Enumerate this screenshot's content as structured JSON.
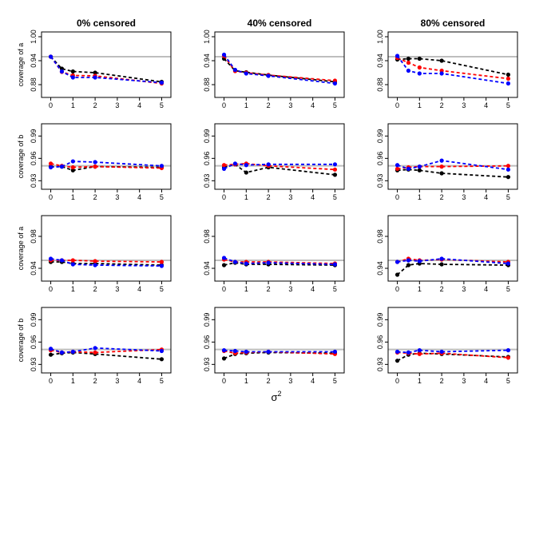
{
  "figure": {
    "column_titles": [
      "0% censored",
      "40% censored",
      "80% censored"
    ],
    "row_ylabels": [
      "coverage of a",
      "coverage of b",
      "coverage of a",
      "coverage of b"
    ],
    "xlabel": "σ",
    "xlabel_superscript": "2",
    "x_ticks": [
      0,
      1,
      2,
      3,
      4,
      5
    ],
    "reference_line_color": "#bebebe",
    "series_colors": [
      "#000000",
      "#ff0000",
      "#0000ff"
    ]
  },
  "chart_data": [
    {
      "type": "line",
      "row": 0,
      "col": 0,
      "title": "0% censored",
      "ylabel": "coverage of a",
      "x": [
        0,
        0.5,
        1,
        2,
        5
      ],
      "ylim": [
        0.86,
        1.0
      ],
      "yticks": [
        0.88,
        0.94,
        1.0
      ],
      "yticklabels": [
        "0.88",
        "0.94",
        "1.00"
      ],
      "reference": 0.95,
      "series": [
        {
          "color": "#000000",
          "values": [
            0.95,
            0.92,
            0.913,
            0.91,
            0.887
          ]
        },
        {
          "color": "#ff0000",
          "values": [
            0.95,
            0.912,
            0.903,
            0.902,
            0.883
          ]
        },
        {
          "color": "#0000ff",
          "values": [
            0.95,
            0.913,
            0.898,
            0.898,
            0.885
          ]
        }
      ]
    },
    {
      "type": "line",
      "row": 0,
      "col": 1,
      "title": "40% censored",
      "ylabel": "",
      "x": [
        0,
        0.5,
        1,
        2,
        5
      ],
      "ylim": [
        0.86,
        1.0
      ],
      "yticks": [
        0.88,
        0.94,
        1.0
      ],
      "yticklabels": [
        "0.88",
        "0.94",
        "1.00"
      ],
      "reference": 0.95,
      "series": [
        {
          "color": "#000000",
          "values": [
            0.945,
            0.915,
            0.911,
            0.904,
            0.887
          ]
        },
        {
          "color": "#ff0000",
          "values": [
            0.952,
            0.914,
            0.91,
            0.904,
            0.89
          ]
        },
        {
          "color": "#0000ff",
          "values": [
            0.955,
            0.917,
            0.908,
            0.902,
            0.883
          ]
        }
      ]
    },
    {
      "type": "line",
      "row": 0,
      "col": 2,
      "title": "80% censored",
      "ylabel": "",
      "x": [
        0,
        0.5,
        1,
        2,
        5
      ],
      "ylim": [
        0.86,
        1.0
      ],
      "yticks": [
        0.88,
        0.94,
        1.0
      ],
      "yticklabels": [
        "0.88",
        "0.94",
        "1.00"
      ],
      "reference": 0.95,
      "series": [
        {
          "color": "#000000",
          "values": [
            0.943,
            0.945,
            0.945,
            0.94,
            0.905
          ]
        },
        {
          "color": "#ff0000",
          "values": [
            0.947,
            0.935,
            0.923,
            0.915,
            0.895
          ]
        },
        {
          "color": "#0000ff",
          "values": [
            0.952,
            0.915,
            0.908,
            0.908,
            0.883
          ]
        }
      ]
    },
    {
      "type": "line",
      "row": 1,
      "col": 0,
      "title": "",
      "ylabel": "coverage of b",
      "x": [
        0,
        0.5,
        1,
        2,
        5
      ],
      "ylim": [
        0.925,
        1.0
      ],
      "yticks": [
        0.93,
        0.96,
        0.99
      ],
      "yticklabels": [
        "0.93",
        "0.96",
        "0.99"
      ],
      "reference": 0.95,
      "series": [
        {
          "color": "#000000",
          "values": [
            0.949,
            0.949,
            0.944,
            0.949,
            0.948
          ]
        },
        {
          "color": "#ff0000",
          "values": [
            0.953,
            0.95,
            0.948,
            0.949,
            0.947
          ]
        },
        {
          "color": "#0000ff",
          "values": [
            0.948,
            0.949,
            0.956,
            0.955,
            0.95
          ]
        }
      ]
    },
    {
      "type": "line",
      "row": 1,
      "col": 1,
      "title": "",
      "ylabel": "",
      "x": [
        0,
        0.5,
        1,
        2,
        5
      ],
      "ylim": [
        0.925,
        1.0
      ],
      "yticks": [
        0.93,
        0.96,
        0.99
      ],
      "yticklabels": [
        "0.93",
        "0.96",
        "0.99"
      ],
      "reference": 0.95,
      "series": [
        {
          "color": "#000000",
          "values": [
            0.948,
            0.952,
            0.941,
            0.948,
            0.938
          ]
        },
        {
          "color": "#ff0000",
          "values": [
            0.951,
            0.952,
            0.953,
            0.95,
            0.945
          ]
        },
        {
          "color": "#0000ff",
          "values": [
            0.946,
            0.953,
            0.951,
            0.952,
            0.952
          ]
        }
      ]
    },
    {
      "type": "line",
      "row": 1,
      "col": 2,
      "title": "",
      "ylabel": "",
      "x": [
        0,
        0.5,
        1,
        2,
        5
      ],
      "ylim": [
        0.925,
        1.0
      ],
      "yticks": [
        0.93,
        0.96,
        0.99
      ],
      "yticklabels": [
        "0.93",
        "0.96",
        "0.99"
      ],
      "reference": 0.95,
      "series": [
        {
          "color": "#000000",
          "values": [
            0.944,
            0.945,
            0.944,
            0.94,
            0.935
          ]
        },
        {
          "color": "#ff0000",
          "values": [
            0.946,
            0.948,
            0.949,
            0.949,
            0.95
          ]
        },
        {
          "color": "#0000ff",
          "values": [
            0.951,
            0.946,
            0.949,
            0.957,
            0.945
          ]
        }
      ]
    },
    {
      "type": "line",
      "row": 2,
      "col": 0,
      "title": "",
      "ylabel": "coverage of a",
      "x": [
        0,
        0.5,
        1,
        2,
        5
      ],
      "ylim": [
        0.93,
        1.0
      ],
      "yticks": [
        0.94,
        0.98
      ],
      "yticklabels": [
        "0.94",
        "0.98"
      ],
      "reference": 0.95,
      "series": [
        {
          "color": "#000000",
          "values": [
            0.948,
            0.948,
            0.946,
            0.946,
            0.944
          ]
        },
        {
          "color": "#ff0000",
          "values": [
            0.95,
            0.95,
            0.95,
            0.949,
            0.948
          ]
        },
        {
          "color": "#0000ff",
          "values": [
            0.952,
            0.95,
            0.945,
            0.944,
            0.943
          ]
        }
      ]
    },
    {
      "type": "line",
      "row": 2,
      "col": 1,
      "title": "",
      "ylabel": "",
      "x": [
        0,
        0.5,
        1,
        2,
        5
      ],
      "ylim": [
        0.93,
        1.0
      ],
      "yticks": [
        0.94,
        0.98
      ],
      "yticklabels": [
        "0.94",
        "0.98"
      ],
      "reference": 0.95,
      "series": [
        {
          "color": "#000000",
          "values": [
            0.944,
            0.947,
            0.945,
            0.945,
            0.944
          ]
        },
        {
          "color": "#ff0000",
          "values": [
            0.951,
            0.948,
            0.948,
            0.948,
            0.946
          ]
        },
        {
          "color": "#0000ff",
          "values": [
            0.953,
            0.948,
            0.946,
            0.947,
            0.945
          ]
        }
      ]
    },
    {
      "type": "line",
      "row": 2,
      "col": 2,
      "title": "",
      "ylabel": "",
      "x": [
        0,
        0.5,
        1,
        2,
        5
      ],
      "ylim": [
        0.93,
        1.0
      ],
      "yticks": [
        0.94,
        0.98
      ],
      "yticklabels": [
        "0.94",
        "0.98"
      ],
      "reference": 0.95,
      "series": [
        {
          "color": "#000000",
          "values": [
            0.932,
            0.944,
            0.946,
            0.945,
            0.944
          ]
        },
        {
          "color": "#ff0000",
          "values": [
            0.948,
            0.952,
            0.95,
            0.951,
            0.948
          ]
        },
        {
          "color": "#0000ff",
          "values": [
            0.948,
            0.95,
            0.949,
            0.952,
            0.946
          ]
        }
      ]
    },
    {
      "type": "line",
      "row": 3,
      "col": 0,
      "title": "",
      "ylabel": "coverage of b",
      "x": [
        0,
        0.5,
        1,
        2,
        5
      ],
      "ylim": [
        0.925,
        1.0
      ],
      "yticks": [
        0.93,
        0.96,
        0.99
      ],
      "yticklabels": [
        "0.93",
        "0.96",
        "0.99"
      ],
      "reference": 0.95,
      "series": [
        {
          "color": "#000000",
          "values": [
            0.943,
            0.945,
            0.946,
            0.944,
            0.937
          ]
        },
        {
          "color": "#ff0000",
          "values": [
            0.949,
            0.946,
            0.947,
            0.946,
            0.95
          ]
        },
        {
          "color": "#0000ff",
          "values": [
            0.951,
            0.946,
            0.947,
            0.952,
            0.948
          ]
        }
      ]
    },
    {
      "type": "line",
      "row": 3,
      "col": 1,
      "title": "",
      "ylabel": "",
      "x": [
        0,
        0.5,
        1,
        2,
        5
      ],
      "ylim": [
        0.925,
        1.0
      ],
      "yticks": [
        0.93,
        0.96,
        0.99
      ],
      "yticklabels": [
        "0.93",
        "0.96",
        "0.99"
      ],
      "reference": 0.95,
      "series": [
        {
          "color": "#000000",
          "values": [
            0.938,
            0.944,
            0.945,
            0.946,
            0.945
          ]
        },
        {
          "color": "#ff0000",
          "values": [
            0.948,
            0.945,
            0.946,
            0.947,
            0.944
          ]
        },
        {
          "color": "#0000ff",
          "values": [
            0.949,
            0.948,
            0.947,
            0.947,
            0.947
          ]
        }
      ]
    },
    {
      "type": "line",
      "row": 3,
      "col": 2,
      "title": "",
      "ylabel": "",
      "x": [
        0,
        0.5,
        1,
        2,
        5
      ],
      "ylim": [
        0.925,
        1.0
      ],
      "yticks": [
        0.93,
        0.96,
        0.99
      ],
      "yticklabels": [
        "0.93",
        "0.96",
        "0.99"
      ],
      "reference": 0.95,
      "series": [
        {
          "color": "#000000",
          "values": [
            0.935,
            0.943,
            0.945,
            0.944,
            0.94
          ]
        },
        {
          "color": "#ff0000",
          "values": [
            0.946,
            0.945,
            0.944,
            0.945,
            0.939
          ]
        },
        {
          "color": "#0000ff",
          "values": [
            0.947,
            0.946,
            0.949,
            0.947,
            0.949
          ]
        }
      ]
    }
  ]
}
